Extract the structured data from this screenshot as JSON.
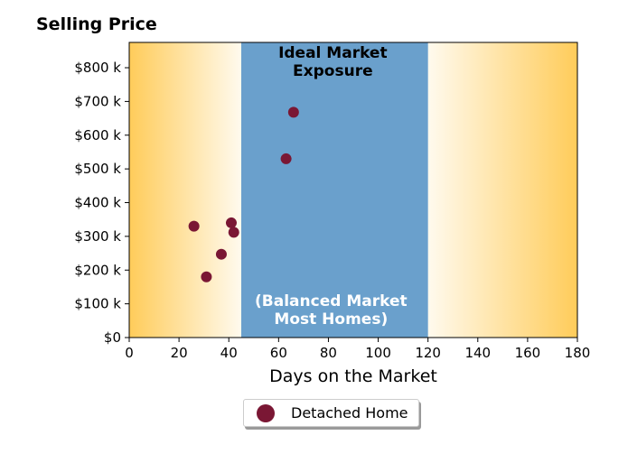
{
  "chart_data": {
    "type": "scatter",
    "title": "Selling Price",
    "xlabel": "Days on the Market",
    "ylabel": "",
    "xlim": [
      0,
      180
    ],
    "ylim": [
      0,
      875000
    ],
    "x_ticks": [
      0,
      20,
      40,
      60,
      80,
      100,
      120,
      140,
      160,
      180
    ],
    "y_ticks": [
      0,
      100000,
      200000,
      300000,
      400000,
      500000,
      600000,
      700000,
      800000
    ],
    "y_tick_labels": [
      "$0",
      "$100 k",
      "$200 k",
      "$300 k",
      "$400 k",
      "$500 k",
      "$600 k",
      "$700 k",
      "$800 k"
    ],
    "grid": false,
    "legend_position": "bottom-center",
    "band": {
      "x_start": 45,
      "x_end": 120,
      "top_label": [
        "Ideal Market",
        "Exposure"
      ],
      "bottom_label": [
        "(Balanced Market",
        "Most Homes)"
      ],
      "color": "#6aa0cc"
    },
    "background_gradient": {
      "edge_color": "#ffcc5a",
      "center_color": "#fffaee"
    },
    "series": [
      {
        "name": "Detached Home",
        "color": "#7a1734",
        "points": [
          {
            "x": 26,
            "y": 330000
          },
          {
            "x": 31,
            "y": 180000
          },
          {
            "x": 37,
            "y": 247000
          },
          {
            "x": 41,
            "y": 340000
          },
          {
            "x": 42,
            "y": 312000
          },
          {
            "x": 63,
            "y": 530000
          },
          {
            "x": 66,
            "y": 668000
          }
        ]
      }
    ]
  }
}
